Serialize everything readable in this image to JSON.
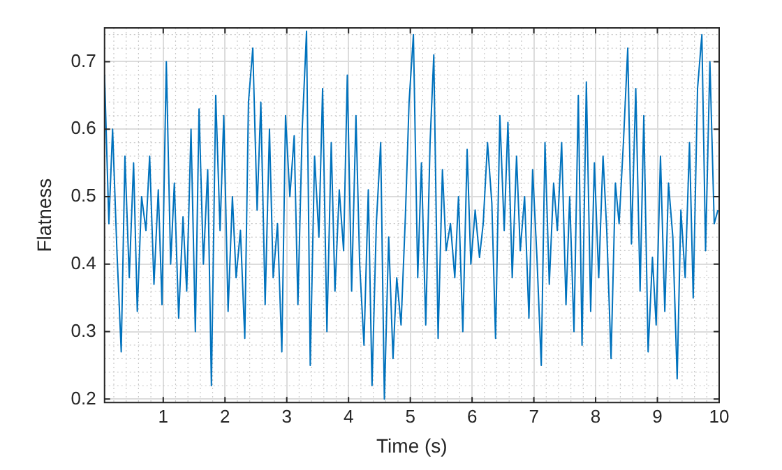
{
  "chart_data": {
    "type": "line",
    "xlabel": "Time (s)",
    "ylabel": "Flatness",
    "grid": true,
    "marker": "none",
    "line_style": "solid",
    "xlim": [
      0.05,
      10
    ],
    "ylim": [
      0.195,
      0.75
    ],
    "xticks": [
      1,
      2,
      3,
      4,
      5,
      6,
      7,
      8,
      9,
      10
    ],
    "yticks": [
      0.2,
      0.3,
      0.4,
      0.5,
      0.6,
      0.7
    ],
    "series": [
      {
        "color": "#0072bd",
        "x": [
          0.05,
          0.12,
          0.18,
          0.25,
          0.32,
          0.38,
          0.45,
          0.52,
          0.58,
          0.65,
          0.72,
          0.78,
          0.85,
          0.92,
          0.98,
          1.05,
          1.12,
          1.18,
          1.25,
          1.32,
          1.38,
          1.45,
          1.52,
          1.58,
          1.65,
          1.72,
          1.78,
          1.85,
          1.92,
          1.98,
          2.05,
          2.12,
          2.18,
          2.25,
          2.32,
          2.38,
          2.45,
          2.52,
          2.58,
          2.65,
          2.72,
          2.78,
          2.85,
          2.92,
          2.98,
          3.05,
          3.12,
          3.18,
          3.25,
          3.32,
          3.38,
          3.45,
          3.52,
          3.58,
          3.65,
          3.72,
          3.78,
          3.85,
          3.92,
          3.98,
          4.05,
          4.12,
          4.18,
          4.25,
          4.32,
          4.38,
          4.45,
          4.52,
          4.58,
          4.65,
          4.72,
          4.78,
          4.85,
          4.92,
          4.98,
          5.05,
          5.12,
          5.18,
          5.25,
          5.32,
          5.38,
          5.45,
          5.52,
          5.58,
          5.65,
          5.72,
          5.78,
          5.85,
          5.92,
          5.98,
          6.05,
          6.12,
          6.18,
          6.25,
          6.32,
          6.38,
          6.45,
          6.52,
          6.58,
          6.65,
          6.72,
          6.78,
          6.85,
          6.92,
          6.98,
          7.05,
          7.12,
          7.18,
          7.25,
          7.32,
          7.38,
          7.45,
          7.52,
          7.58,
          7.65,
          7.72,
          7.78,
          7.85,
          7.92,
          7.98,
          8.05,
          8.12,
          8.18,
          8.25,
          8.32,
          8.38,
          8.45,
          8.52,
          8.58,
          8.65,
          8.72,
          8.78,
          8.85,
          8.92,
          8.98,
          9.05,
          9.12,
          9.18,
          9.25,
          9.32,
          9.38,
          9.45,
          9.52,
          9.58,
          9.65,
          9.72,
          9.78,
          9.85,
          9.92,
          9.98
        ],
        "values": [
          0.68,
          0.46,
          0.6,
          0.42,
          0.27,
          0.56,
          0.38,
          0.55,
          0.33,
          0.5,
          0.45,
          0.56,
          0.37,
          0.51,
          0.34,
          0.7,
          0.4,
          0.52,
          0.32,
          0.47,
          0.36,
          0.6,
          0.3,
          0.63,
          0.4,
          0.54,
          0.22,
          0.65,
          0.45,
          0.62,
          0.33,
          0.5,
          0.38,
          0.45,
          0.29,
          0.64,
          0.72,
          0.48,
          0.64,
          0.34,
          0.6,
          0.38,
          0.46,
          0.27,
          0.62,
          0.5,
          0.59,
          0.34,
          0.6,
          0.745,
          0.25,
          0.56,
          0.44,
          0.66,
          0.3,
          0.58,
          0.36,
          0.51,
          0.42,
          0.68,
          0.36,
          0.62,
          0.4,
          0.28,
          0.51,
          0.22,
          0.46,
          0.58,
          0.2,
          0.44,
          0.26,
          0.38,
          0.31,
          0.47,
          0.64,
          0.74,
          0.38,
          0.55,
          0.31,
          0.58,
          0.71,
          0.29,
          0.54,
          0.42,
          0.46,
          0.38,
          0.5,
          0.3,
          0.57,
          0.4,
          0.48,
          0.41,
          0.46,
          0.58,
          0.49,
          0.29,
          0.62,
          0.45,
          0.61,
          0.38,
          0.56,
          0.42,
          0.5,
          0.32,
          0.54,
          0.41,
          0.25,
          0.58,
          0.37,
          0.52,
          0.45,
          0.58,
          0.34,
          0.5,
          0.3,
          0.65,
          0.28,
          0.67,
          0.33,
          0.55,
          0.38,
          0.56,
          0.45,
          0.26,
          0.52,
          0.46,
          0.58,
          0.72,
          0.43,
          0.66,
          0.36,
          0.62,
          0.27,
          0.41,
          0.31,
          0.56,
          0.33,
          0.52,
          0.44,
          0.23,
          0.48,
          0.38,
          0.58,
          0.35,
          0.66,
          0.74,
          0.42,
          0.7,
          0.46,
          0.48
        ]
      }
    ]
  }
}
